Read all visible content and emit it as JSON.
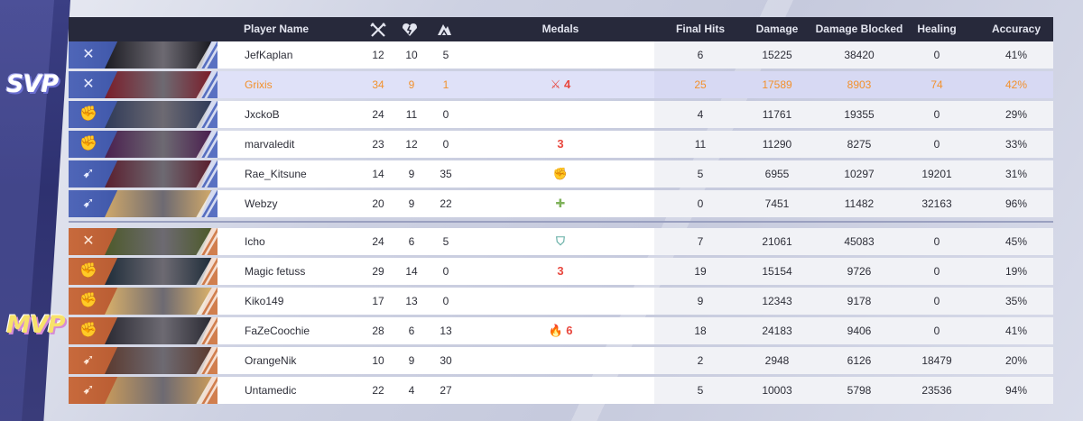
{
  "badges": {
    "svp": "SVP",
    "mvp": "MVP"
  },
  "header": {
    "player_name": "Player Name",
    "medals": "Medals",
    "final_hits": "Final Hits",
    "damage": "Damage",
    "damage_blocked": "Damage Blocked",
    "healing": "Healing",
    "accuracy": "Accuracy"
  },
  "colors": {
    "blue_team": "#4f66b8",
    "orange_team": "#c86a3c",
    "highlight_text": "#f2912d",
    "header_bg": "#27293b"
  },
  "players": [
    {
      "name": "JefKaplan",
      "kills": "12",
      "deaths": "10",
      "assists": "5",
      "medal": "",
      "final_hits": "6",
      "damage": "15225",
      "damage_blocked": "38420",
      "healing": "0",
      "accuracy": "41%"
    },
    {
      "name": "Grixis",
      "kills": "34",
      "deaths": "9",
      "assists": "1",
      "medal": "⚔ 4",
      "final_hits": "25",
      "damage": "17589",
      "damage_blocked": "8903",
      "healing": "74",
      "accuracy": "42%"
    },
    {
      "name": "JxckoB",
      "kills": "24",
      "deaths": "11",
      "assists": "0",
      "medal": "",
      "final_hits": "4",
      "damage": "11761",
      "damage_blocked": "19355",
      "healing": "0",
      "accuracy": "29%"
    },
    {
      "name": "marvaledit",
      "kills": "23",
      "deaths": "12",
      "assists": "0",
      "medal": "3",
      "final_hits": "11",
      "damage": "11290",
      "damage_blocked": "8275",
      "healing": "0",
      "accuracy": "33%"
    },
    {
      "name": "Rae_Kitsune",
      "kills": "14",
      "deaths": "9",
      "assists": "35",
      "medal": "✊",
      "final_hits": "5",
      "damage": "6955",
      "damage_blocked": "10297",
      "healing": "19201",
      "accuracy": "31%"
    },
    {
      "name": "Webzy",
      "kills": "20",
      "deaths": "9",
      "assists": "22",
      "medal": "✚",
      "final_hits": "0",
      "damage": "7451",
      "damage_blocked": "11482",
      "healing": "32163",
      "accuracy": "96%"
    },
    {
      "name": "Icho",
      "kills": "24",
      "deaths": "6",
      "assists": "5",
      "medal": "⛉",
      "final_hits": "7",
      "damage": "21061",
      "damage_blocked": "45083",
      "healing": "0",
      "accuracy": "45%"
    },
    {
      "name": "Magic fetuss",
      "kills": "29",
      "deaths": "14",
      "assists": "0",
      "medal": "3",
      "final_hits": "19",
      "damage": "15154",
      "damage_blocked": "9726",
      "healing": "0",
      "accuracy": "19%"
    },
    {
      "name": "Kiko149",
      "kills": "17",
      "deaths": "13",
      "assists": "0",
      "medal": "",
      "final_hits": "9",
      "damage": "12343",
      "damage_blocked": "9178",
      "healing": "0",
      "accuracy": "35%"
    },
    {
      "name": "FaZeCoochie",
      "kills": "28",
      "deaths": "6",
      "assists": "13",
      "medal": "🔥 6",
      "final_hits": "18",
      "damage": "24183",
      "damage_blocked": "9406",
      "healing": "0",
      "accuracy": "41%"
    },
    {
      "name": "OrangeNik",
      "kills": "10",
      "deaths": "9",
      "assists": "30",
      "medal": "",
      "final_hits": "2",
      "damage": "2948",
      "damage_blocked": "6126",
      "healing": "18479",
      "accuracy": "20%"
    },
    {
      "name": "Untamedic",
      "kills": "22",
      "deaths": "4",
      "assists": "27",
      "medal": "",
      "final_hits": "5",
      "damage": "10003",
      "damage_blocked": "5798",
      "healing": "23536",
      "accuracy": "94%"
    }
  ]
}
